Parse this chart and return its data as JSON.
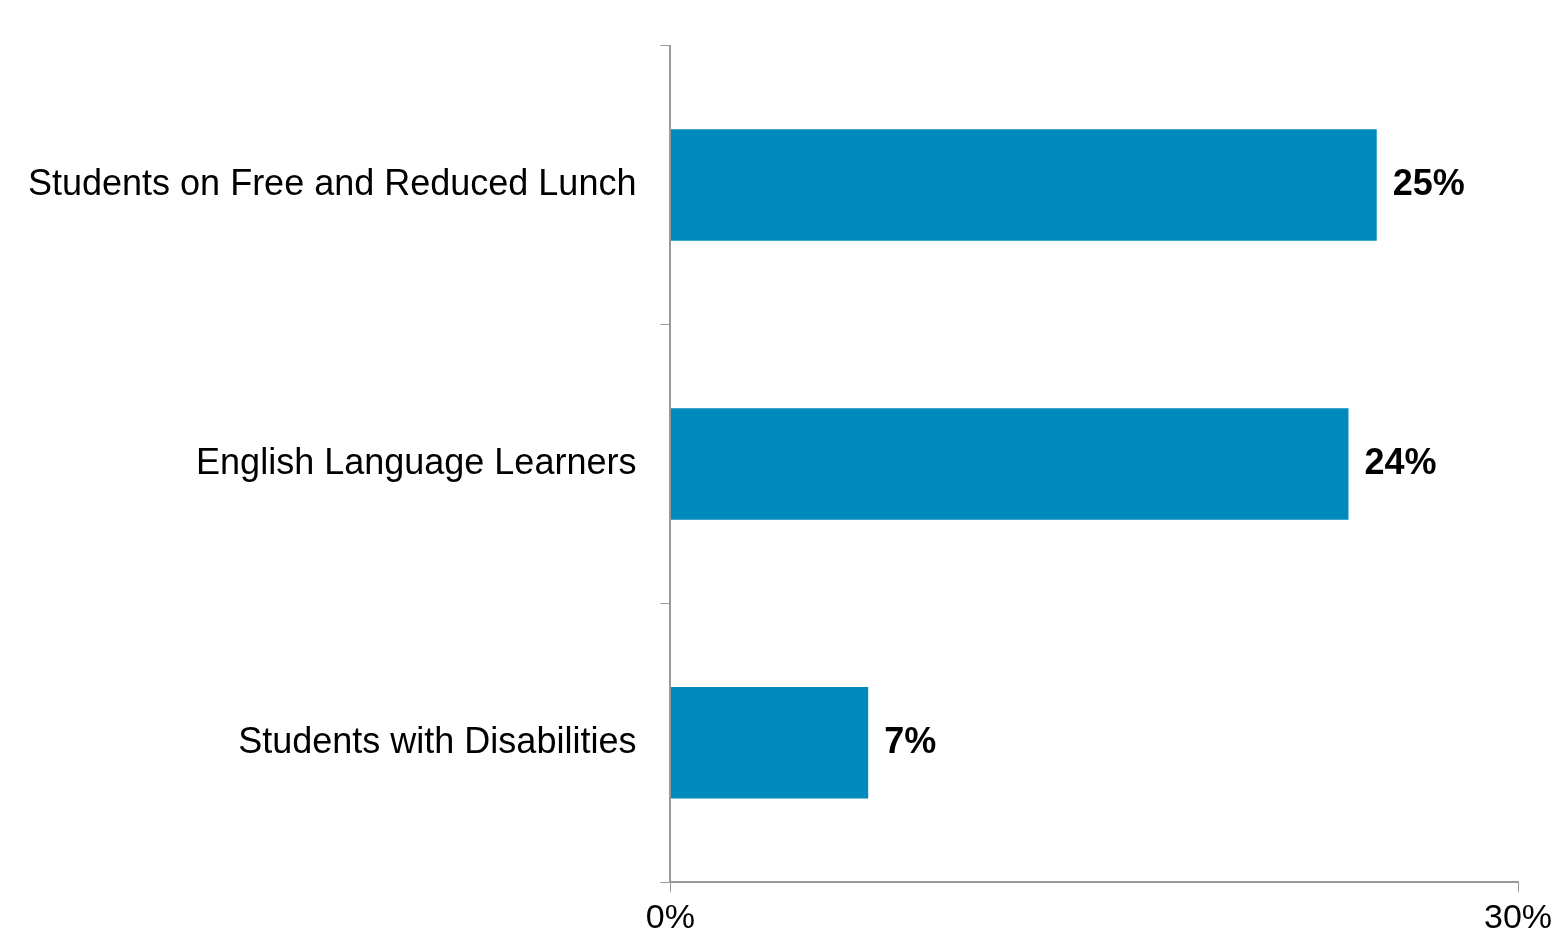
{
  "chart_data": {
    "type": "bar",
    "orientation": "horizontal",
    "categories": [
      "Students on Free and Reduced Lunch",
      "English Language Learners",
      "Students with Disabilities"
    ],
    "values": [
      25,
      24,
      7
    ],
    "color": "#008abb",
    "value_labels": [
      "25%",
      "24%",
      "7%"
    ],
    "xlim": [
      0,
      30
    ],
    "xticks": [
      {
        "value": 0,
        "label": "0%"
      },
      {
        "value": 30,
        "label": "30%"
      }
    ],
    "grid": false
  }
}
